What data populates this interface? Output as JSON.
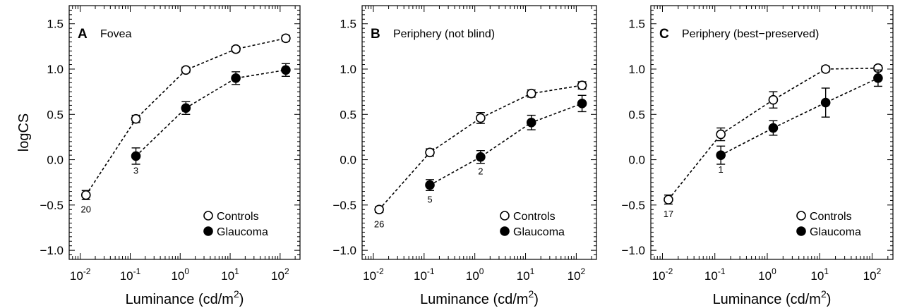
{
  "chart_data": [
    {
      "type": "line",
      "panel_letter": "A",
      "title": "Fovea",
      "xlabel": "Luminance (cd/m²)",
      "ylabel": "logCS",
      "x_scale": "log",
      "xlim": [
        0.006,
        250
      ],
      "ylim": [
        -1.1,
        1.7
      ],
      "x": [
        0.013,
        0.13,
        1.3,
        13,
        130
      ],
      "x_tick_labels": [
        [
          "10",
          "-2"
        ],
        [
          "10",
          "-1"
        ],
        [
          "10",
          "0"
        ],
        [
          "10",
          "1"
        ],
        [
          "10",
          "2"
        ]
      ],
      "y_ticks": [
        "−1.0",
        "−0.5",
        "0.0",
        "0.5",
        "1.0",
        "1.5"
      ],
      "legend_position": "bottom-right",
      "series": [
        {
          "name": "Controls",
          "marker": "open-circle",
          "x": [
            0.013,
            0.13,
            1.3,
            13,
            130
          ],
          "values": [
            -0.39,
            0.45,
            0.99,
            1.22,
            1.34
          ],
          "errors": [
            0.05,
            0.04,
            0.03,
            0.03,
            0.03
          ]
        },
        {
          "name": "Glaucoma",
          "marker": "filled-circle",
          "x": [
            0.13,
            1.3,
            13,
            130
          ],
          "values": [
            0.04,
            0.57,
            0.9,
            0.99
          ],
          "errors": [
            0.09,
            0.07,
            0.07,
            0.07
          ]
        }
      ],
      "n_annotations": [
        {
          "text": "20",
          "x": 0.013,
          "y": -0.39
        },
        {
          "text": "3",
          "x": 0.13,
          "y": 0.04
        }
      ]
    },
    {
      "type": "line",
      "panel_letter": "B",
      "title": "Periphery (not blind)",
      "xlabel": "Luminance (cd/m²)",
      "ylabel": "",
      "x_scale": "log",
      "xlim": [
        0.006,
        250
      ],
      "ylim": [
        -1.1,
        1.7
      ],
      "x_tick_labels": [
        [
          "10",
          "-2"
        ],
        [
          "10",
          "-1"
        ],
        [
          "10",
          "0"
        ],
        [
          "10",
          "1"
        ],
        [
          "10",
          "2"
        ]
      ],
      "y_ticks": [
        "−1.0",
        "−0.5",
        "0.0",
        "0.5",
        "1.0",
        "1.5"
      ],
      "legend_position": "bottom-right",
      "series": [
        {
          "name": "Controls",
          "marker": "open-circle",
          "x": [
            0.013,
            0.13,
            1.3,
            13,
            130
          ],
          "values": [
            -0.55,
            0.08,
            0.46,
            0.73,
            0.82
          ],
          "errors": [
            0.03,
            0.04,
            0.06,
            0.04,
            0.04
          ]
        },
        {
          "name": "Glaucoma",
          "marker": "filled-circle",
          "x": [
            0.13,
            1.3,
            13,
            130
          ],
          "values": [
            -0.28,
            0.03,
            0.41,
            0.62
          ],
          "errors": [
            0.06,
            0.07,
            0.08,
            0.09
          ]
        }
      ],
      "n_annotations": [
        {
          "text": "26",
          "x": 0.013,
          "y": -0.55
        },
        {
          "text": "5",
          "x": 0.13,
          "y": -0.28
        },
        {
          "text": "2",
          "x": 1.3,
          "y": 0.03
        }
      ]
    },
    {
      "type": "line",
      "panel_letter": "C",
      "title": "Periphery (best−preserved)",
      "xlabel": "Luminance (cd/m²)",
      "ylabel": "",
      "x_scale": "log",
      "xlim": [
        0.006,
        250
      ],
      "ylim": [
        -1.1,
        1.7
      ],
      "x_tick_labels": [
        [
          "10",
          "-2"
        ],
        [
          "10",
          "-1"
        ],
        [
          "10",
          "0"
        ],
        [
          "10",
          "1"
        ],
        [
          "10",
          "2"
        ]
      ],
      "y_ticks": [
        "−1.0",
        "−0.5",
        "0.0",
        "0.5",
        "1.0",
        "1.5"
      ],
      "legend_position": "bottom-right",
      "series": [
        {
          "name": "Controls",
          "marker": "open-circle",
          "x": [
            0.013,
            0.13,
            1.3,
            13,
            130
          ],
          "values": [
            -0.44,
            0.28,
            0.66,
            1.0,
            1.01
          ],
          "errors": [
            0.05,
            0.07,
            0.09,
            0.03,
            0.03
          ]
        },
        {
          "name": "Glaucoma",
          "marker": "filled-circle",
          "x": [
            0.13,
            1.3,
            13,
            130
          ],
          "values": [
            0.05,
            0.35,
            0.63,
            0.9
          ],
          "errors": [
            0.1,
            0.08,
            0.16,
            0.09
          ]
        }
      ],
      "n_annotations": [
        {
          "text": "17",
          "x": 0.013,
          "y": -0.44
        },
        {
          "text": "1",
          "x": 0.13,
          "y": 0.05
        }
      ]
    }
  ]
}
